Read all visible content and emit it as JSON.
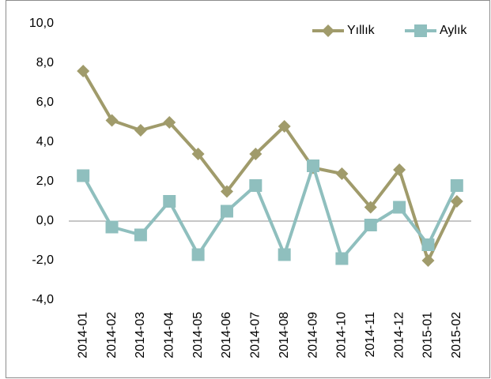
{
  "chart_data": {
    "type": "line",
    "categories": [
      "2014-01",
      "2014-02",
      "2014-03",
      "2014-04",
      "2014-05",
      "2014-06",
      "2014-07",
      "2014-08",
      "2014-09",
      "2014-10",
      "2014-11",
      "2014-12",
      "2015-01",
      "2015-02"
    ],
    "series": [
      {
        "name": "Yıllık",
        "color": "#a09b6b",
        "marker": "diamond",
        "values": [
          7.6,
          5.1,
          4.6,
          5.0,
          3.4,
          1.5,
          3.4,
          4.8,
          2.7,
          2.4,
          0.7,
          2.6,
          -2.0,
          1.0
        ]
      },
      {
        "name": "Aylık",
        "color": "#8fbfbe",
        "marker": "square",
        "values": [
          2.3,
          -0.3,
          -0.7,
          1.0,
          -1.7,
          0.5,
          1.8,
          -1.7,
          2.8,
          -1.9,
          -0.2,
          0.7,
          -1.2,
          1.8
        ]
      }
    ],
    "ylim": [
      -4,
      10
    ],
    "yticks": [
      {
        "value": -4,
        "label": "-4,0"
      },
      {
        "value": -2,
        "label": "-2,0"
      },
      {
        "value": 0,
        "label": "0,0"
      },
      {
        "value": 2,
        "label": "2,0"
      },
      {
        "value": 4,
        "label": "4,0"
      },
      {
        "value": 6,
        "label": "6,0"
      },
      {
        "value": 8,
        "label": "8,0"
      },
      {
        "value": 10,
        "label": "10,0"
      }
    ],
    "grid": false,
    "legend": "upper right"
  }
}
